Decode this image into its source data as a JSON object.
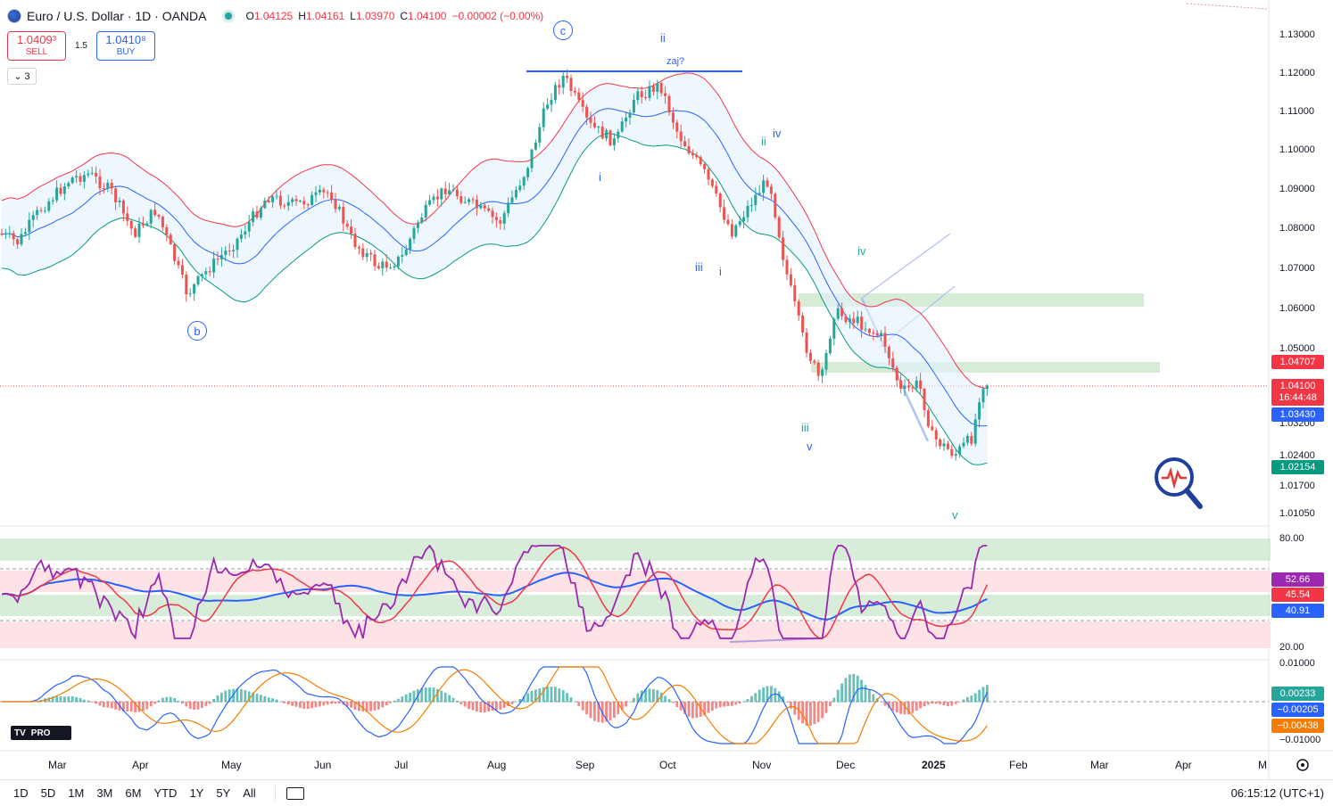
{
  "header": {
    "symbol": "Euro / U.S. Dollar · 1D · OANDA",
    "ohlc": [
      {
        "k": "O",
        "v": "1.04125"
      },
      {
        "k": "H",
        "v": "1.04161"
      },
      {
        "k": "L",
        "v": "1.03970"
      },
      {
        "k": "C",
        "v": "1.04100"
      }
    ],
    "change": "−0.00002 (−0.00%)"
  },
  "trade": {
    "sell_price": "1.0409³",
    "sell_label": "SELL",
    "spread": "1.5",
    "buy_price": "1.0410⁸",
    "buy_label": "BUY"
  },
  "collapse": {
    "icon": "chevron-down-icon",
    "count": "3"
  },
  "price_axis": [
    "1.13000",
    "1.12000",
    "1.11000",
    "1.10000",
    "1.09000",
    "1.08000",
    "1.07000",
    "1.06000",
    "1.05000",
    "1.03200",
    "1.02400",
    "1.01700",
    "1.01050"
  ],
  "price_badges": {
    "upper_band": {
      "value": "1.04707",
      "color": "#f23645"
    },
    "last": {
      "value": "1.04100",
      "countdown": "16:44:48",
      "color": "#f23645"
    },
    "mid_band": {
      "value": "1.03430",
      "color": "#2962ff"
    },
    "lower_band": {
      "value": "1.02154",
      "color": "#089981"
    }
  },
  "rsi_axis": [
    "80.00",
    "20.00"
  ],
  "rsi_badges": {
    "rsi": {
      "value": "52.66",
      "color": "#9c27b0"
    },
    "ma_fast": {
      "value": "45.54",
      "color": "#f23645"
    },
    "ma_slow": {
      "value": "40.91",
      "color": "#2962ff"
    }
  },
  "macd_axis": [
    "0.01000",
    "−0.01000"
  ],
  "macd_badges": {
    "hist": {
      "value": "0.00233",
      "color": "#26a69a"
    },
    "macd": {
      "value": "−0.00205",
      "color": "#2962ff"
    },
    "signal": {
      "value": "−0.00438",
      "color": "#f57c00"
    }
  },
  "x_axis": [
    "Mar",
    "Apr",
    "May",
    "Jun",
    "Jul",
    "Aug",
    "Sep",
    "Oct",
    "Nov",
    "Dec",
    "2025",
    "Feb",
    "Mar",
    "Apr",
    "M"
  ],
  "wave_labels": [
    "c",
    "ii",
    "zaj?",
    "i",
    "ii",
    "iv",
    "iii",
    "i",
    "iv",
    "b",
    "iii",
    "v",
    "v"
  ],
  "timeframes": [
    "1D",
    "5D",
    "1M",
    "3M",
    "6M",
    "YTD",
    "1Y",
    "5Y",
    "All"
  ],
  "clock": "06:15:12 (UTC+1)",
  "logo": "PRO",
  "colors": {
    "up": "#26a69a",
    "down": "#ef5350",
    "band_upper": "#f23645",
    "band_mid": "#2962ff",
    "band_lower": "#089981",
    "rsi": "#9c27b0"
  }
}
